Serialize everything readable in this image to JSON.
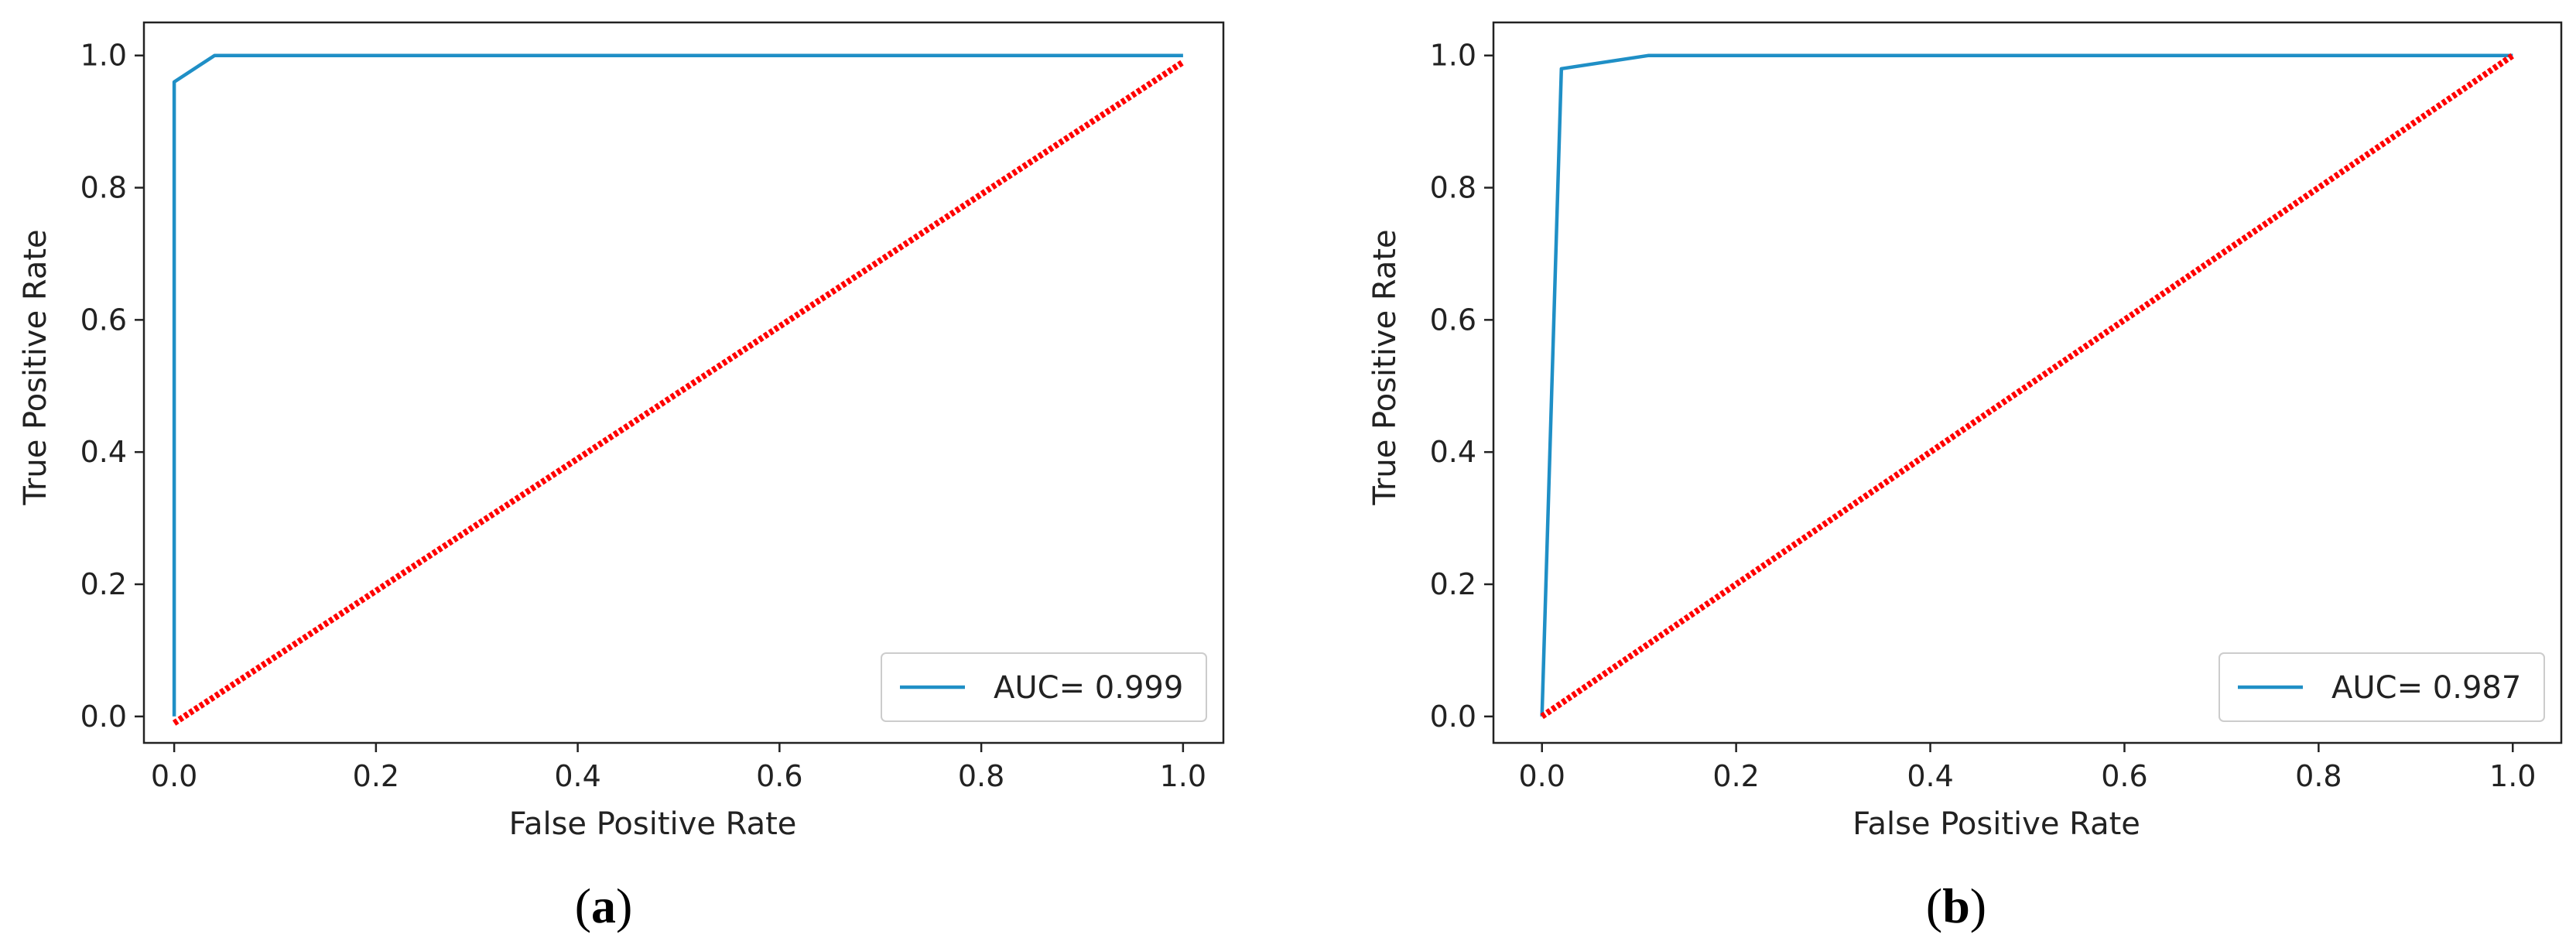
{
  "chart_data": [
    {
      "type": "line",
      "panel_label": "(a)",
      "panel_letter": "a",
      "xlabel": "False Positive Rate",
      "ylabel": "True Positive Rate",
      "xlim": [
        -0.03,
        1.04
      ],
      "ylim": [
        -0.04,
        1.05
      ],
      "xticks": [
        0.0,
        0.2,
        0.4,
        0.6,
        0.8,
        1.0
      ],
      "xtick_labels": [
        "0.0",
        "0.2",
        "0.4",
        "0.6",
        "0.8",
        "1.0"
      ],
      "yticks": [
        0.0,
        0.2,
        0.4,
        0.6,
        0.8,
        1.0
      ],
      "ytick_labels": [
        "0.0",
        "0.2",
        "0.4",
        "0.6",
        "0.8",
        "1.0"
      ],
      "grid": false,
      "legend_position": "lower-right",
      "series": [
        {
          "name": "AUC= 0.999",
          "color": "#1f8fc6",
          "style": "solid",
          "points": [
            [
              0.0,
              0.0
            ],
            [
              0.0,
              0.96
            ],
            [
              0.04,
              1.0
            ],
            [
              1.0,
              1.0
            ]
          ]
        },
        {
          "color": "#ff0000",
          "style": "dotted",
          "points": [
            [
              0.0,
              -0.01
            ],
            [
              1.0,
              0.99
            ]
          ]
        }
      ]
    },
    {
      "type": "line",
      "panel_label": "(b)",
      "panel_letter": "b",
      "xlabel": "False Positive Rate",
      "ylabel": "True Positive Rate",
      "xlim": [
        -0.05,
        1.05
      ],
      "ylim": [
        -0.04,
        1.05
      ],
      "xticks": [
        0.0,
        0.2,
        0.4,
        0.6,
        0.8,
        1.0
      ],
      "xtick_labels": [
        "0.0",
        "0.2",
        "0.4",
        "0.6",
        "0.8",
        "1.0"
      ],
      "yticks": [
        0.0,
        0.2,
        0.4,
        0.6,
        0.8,
        1.0
      ],
      "ytick_labels": [
        "0.0",
        "0.2",
        "0.4",
        "0.6",
        "0.8",
        "1.0"
      ],
      "grid": false,
      "legend_position": "lower-right",
      "series": [
        {
          "name": "AUC= 0.987",
          "color": "#1f8fc6",
          "style": "solid",
          "points": [
            [
              0.0,
              0.0
            ],
            [
              0.02,
              0.98
            ],
            [
              0.11,
              1.0
            ],
            [
              1.0,
              1.0
            ]
          ]
        },
        {
          "color": "#ff0000",
          "style": "dotted",
          "points": [
            [
              0.0,
              0.0
            ],
            [
              1.0,
              1.0
            ]
          ]
        }
      ]
    }
  ]
}
